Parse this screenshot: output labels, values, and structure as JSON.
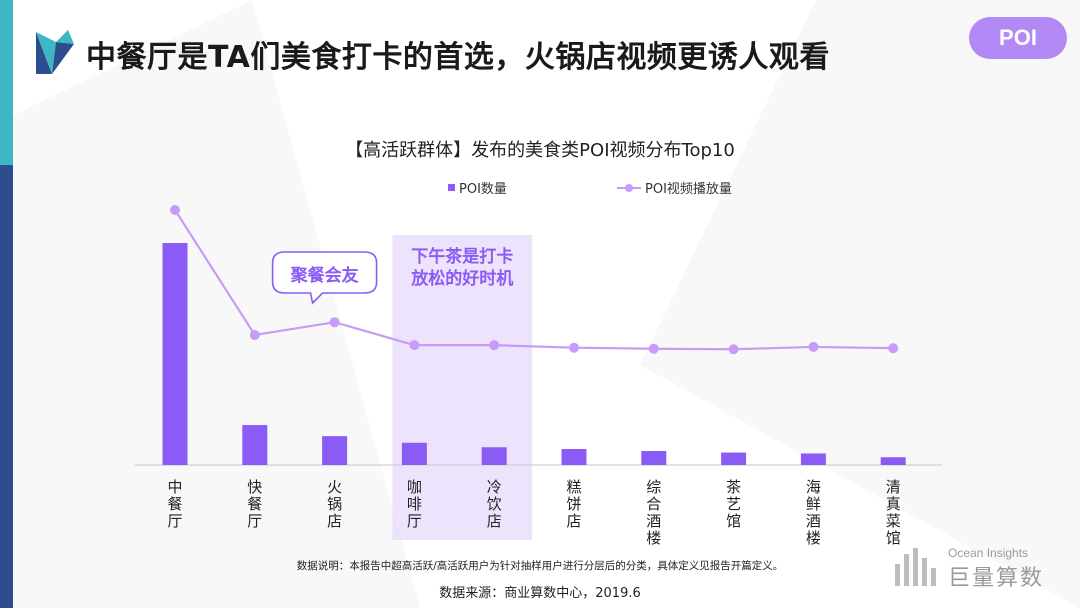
{
  "page": {
    "title": "中餐厅是TA们美食打卡的首选，火锅店视频更诱人观看",
    "badge": "POI"
  },
  "chart_data": {
    "type": "bar",
    "title": "【高活跃群体】发布的美食类POI视频分布Top10",
    "categories": [
      "中餐厅",
      "快餐厅",
      "火锅店",
      "咖啡厅",
      "冷饮店",
      "糕饼店",
      "综合酒楼",
      "茶艺馆",
      "海鲜酒楼",
      "清真菜馆"
    ],
    "series": [
      {
        "name": "POI数量",
        "type": "bar",
        "color": "#8a5cf5",
        "values": [
          100,
          18,
          13,
          10,
          8,
          7.2,
          6.3,
          5.6,
          5.2,
          3.5
        ]
      },
      {
        "name": "POI视频播放量",
        "type": "line",
        "color": "#c79bf7",
        "values": [
          100,
          51,
          56,
          47,
          47,
          46,
          45.6,
          45.4,
          46.3,
          45.8
        ]
      }
    ],
    "legend_position": "top",
    "grid": false,
    "annotations": [
      {
        "text": "聚餐会友",
        "category": "火锅店",
        "style": "speech-bubble"
      },
      {
        "text": "下午茶是打卡放松的好时机",
        "categories": [
          "咖啡厅",
          "冷饮店"
        ],
        "style": "highlight-band"
      }
    ]
  },
  "footnote": "数据说明：本报告中超高活跃/高活跃用户为针对抽样用户进行分层后的分类，具体定义见报告开篇定义。",
  "source": "数据来源：商业算数中心，2019.6",
  "brand": {
    "small": "Ocean Insights",
    "big": "巨量算数"
  }
}
